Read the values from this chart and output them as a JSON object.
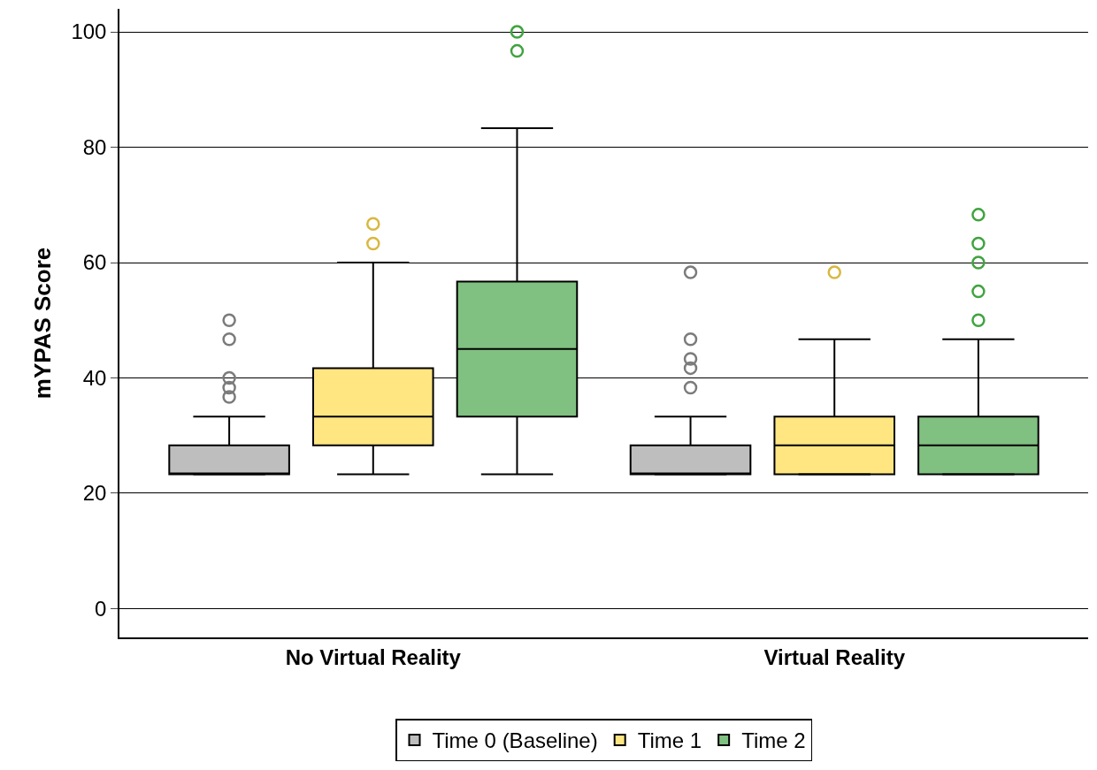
{
  "chart_data": {
    "type": "box",
    "ylabel": "mYPAS Score",
    "categories": [
      "No Virtual Reality",
      "Virtual Reality"
    ],
    "ylim": [
      -5,
      104
    ],
    "yticks": [
      0,
      20,
      40,
      60,
      80,
      100
    ],
    "grid": "y",
    "legend": "bottom",
    "marker": "circle",
    "series": [
      {
        "name": "Time 0 (Baseline)",
        "color": "#bebebe",
        "boxes": [
          {
            "low": 23.3,
            "q1": 23.3,
            "median": 23.3,
            "q3": 28.3,
            "high": 33.3,
            "outliers": [
              50,
              46.7,
              40,
              38.3,
              36.7
            ]
          },
          {
            "low": 23.3,
            "q1": 23.3,
            "median": 23.3,
            "q3": 28.3,
            "high": 33.3,
            "outliers": [
              58.3,
              46.7,
              43.3,
              41.7,
              38.3
            ]
          }
        ]
      },
      {
        "name": "Time 1",
        "color": "#ffe680",
        "boxes": [
          {
            "low": 23.3,
            "q1": 28.3,
            "median": 33.3,
            "q3": 41.7,
            "high": 60,
            "outliers": [
              66.7,
              63.3
            ]
          },
          {
            "low": 23.3,
            "q1": 23.3,
            "median": 28.3,
            "q3": 33.3,
            "high": 46.7,
            "outliers": [
              58.3
            ]
          }
        ]
      },
      {
        "name": "Time 2",
        "color": "#80c080",
        "boxes": [
          {
            "low": 23.3,
            "q1": 33.3,
            "median": 45,
            "q3": 56.7,
            "high": 83.3,
            "outliers": [
              100,
              96.7
            ]
          },
          {
            "low": 23.3,
            "q1": 23.3,
            "median": 28.3,
            "q3": 33.3,
            "high": 46.7,
            "outliers": [
              68.3,
              63.3,
              60,
              55,
              50
            ]
          }
        ]
      }
    ]
  }
}
